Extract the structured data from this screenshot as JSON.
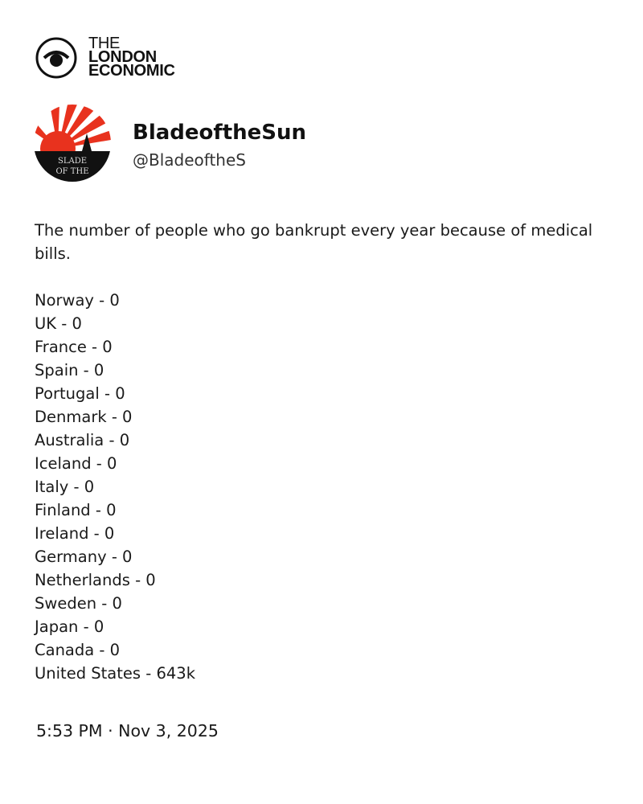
{
  "brand": {
    "line1": "THE",
    "line2": "LONDON",
    "line3": "ECONOMIC"
  },
  "tweet": {
    "display_name": "BladeoftheSun",
    "handle": "@BladeoftheS",
    "avatar_text": "BLADE OF THE SUN",
    "intro": "The number of people who go bankrupt every year because of medical bills.",
    "lines": [
      "Norway - 0",
      "UK - 0",
      "France - 0",
      "Spain - 0",
      "Portugal - 0",
      "Denmark - 0",
      "Australia - 0",
      "Iceland - 0",
      "Italy - 0",
      "Finland - 0",
      "Ireland - 0",
      "Germany - 0",
      "Netherlands - 0",
      "Sweden - 0",
      "Japan - 0",
      "Canada - 0",
      "United States - 643k"
    ],
    "timestamp": "5:53 PM · Nov 3, 2025"
  },
  "colors": {
    "avatar_red": "#e8321e",
    "text": "#1a1a1a"
  }
}
